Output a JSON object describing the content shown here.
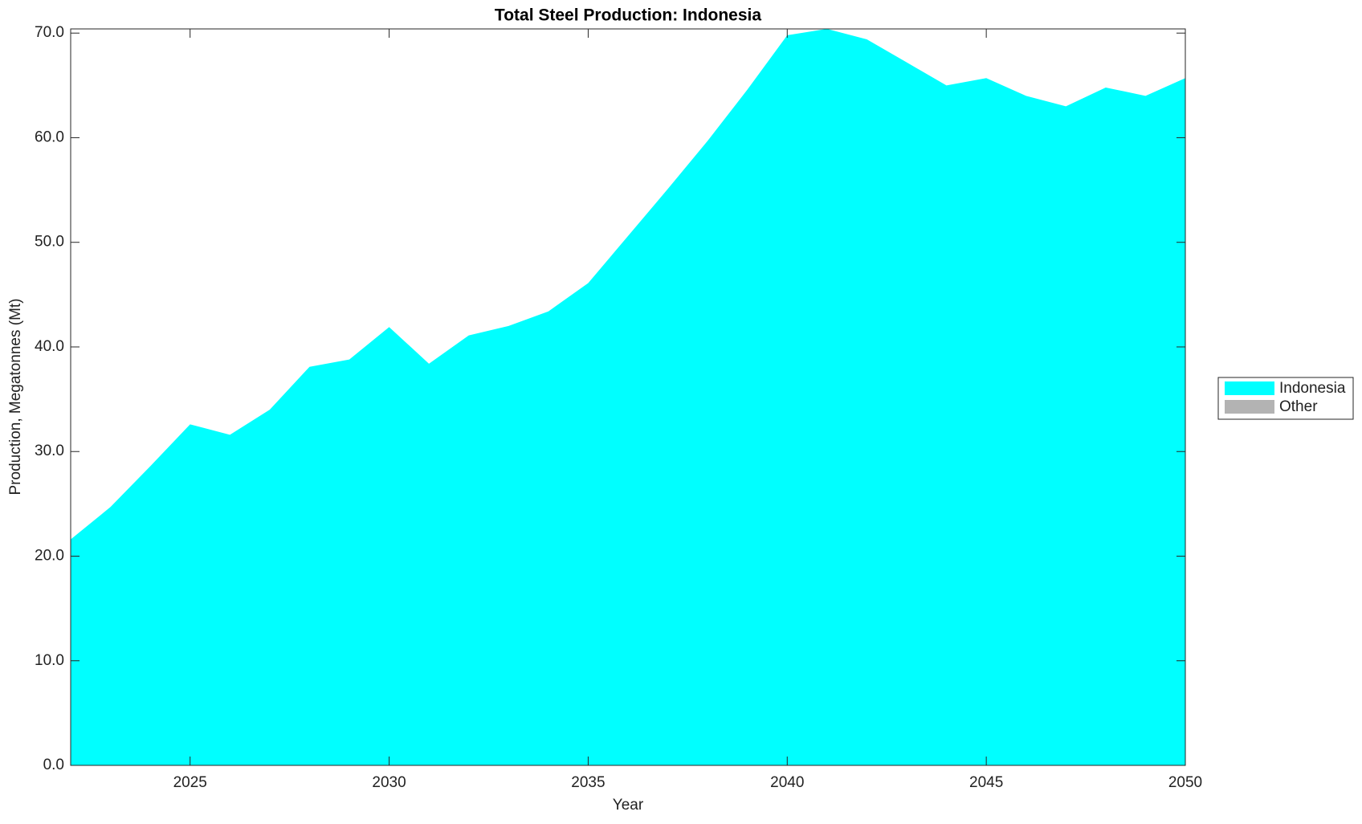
{
  "chart_data": {
    "type": "stacked_area",
    "title": "Total Steel Production: Indonesia",
    "x_label": "Year",
    "y_label": "Production, Megatonnes (Mt)",
    "x": [
      2022,
      2023,
      2024,
      2025,
      2026,
      2027,
      2028,
      2029,
      2030,
      2031,
      2032,
      2033,
      2034,
      2035,
      2036,
      2037,
      2038,
      2039,
      2040,
      2041,
      2042,
      2043,
      2044,
      2045,
      2046,
      2047,
      2048,
      2049,
      2050
    ],
    "series": [
      {
        "name": "Indonesia",
        "color": "#00ffff",
        "values": [
          21.6,
          24.7,
          28.6,
          32.6,
          31.6,
          34.0,
          38.1,
          38.8,
          41.9,
          38.4,
          41.1,
          42.0,
          43.4,
          46.1,
          50.6,
          55.1,
          59.7,
          64.6,
          69.8,
          70.4,
          69.4,
          67.2,
          65.0,
          65.7,
          64.0,
          63.0,
          64.8,
          64.0,
          65.7
        ]
      },
      {
        "name": "Other",
        "color": "#b3b3b3",
        "values": [
          0,
          0,
          0,
          0,
          0,
          0,
          0,
          0,
          0,
          0,
          0,
          0,
          0,
          0,
          0,
          0,
          0,
          0,
          0,
          0,
          0,
          0,
          0,
          0,
          0,
          0,
          0,
          0,
          0
        ]
      }
    ],
    "xlim": [
      2022,
      2050
    ],
    "xticks": [
      2025,
      2030,
      2035,
      2040,
      2045,
      2050
    ],
    "ylim": [
      0,
      70.4
    ],
    "yticks": [
      {
        "value": 0,
        "label": "0.0"
      },
      {
        "value": 10,
        "label": "10.0"
      },
      {
        "value": 20,
        "label": "20.0"
      },
      {
        "value": 30,
        "label": "30.0"
      },
      {
        "value": 40,
        "label": "40.0"
      },
      {
        "value": 50,
        "label": "50.0"
      },
      {
        "value": 60,
        "label": "60.0"
      },
      {
        "value": 70,
        "label": "70.0"
      }
    ],
    "legend": "right"
  }
}
